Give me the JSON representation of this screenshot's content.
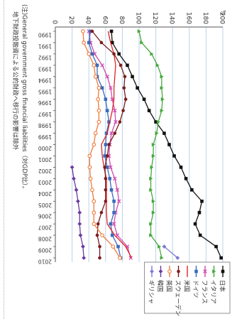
{
  "chart_data": {
    "type": "line",
    "title": "",
    "xlabel": "",
    "ylabel": "%",
    "ylim": [
      0,
      200
    ],
    "yticks": [
      0,
      20,
      40,
      60,
      80,
      100,
      120,
      140,
      160,
      180,
      200
    ],
    "grid": "horizontal",
    "legend_position": "top-right",
    "categories": [
      "1990",
      "1991",
      "1992",
      "1993",
      "1994",
      "1995",
      "1996",
      "1997",
      "1998",
      "1999",
      "2000",
      "2001",
      "2002",
      "2003",
      "2004",
      "2005",
      "2006",
      "2007",
      "2008",
      "2009",
      "2010"
    ],
    "x_tick_labels": [
      "1990",
      "1991",
      "1992",
      "1993",
      "1994",
      "1995",
      "1996",
      "1997",
      "1998",
      "1999",
      "2000",
      "2001",
      "2002",
      "2003",
      "2004",
      "2005",
      "2006",
      "2007",
      "2008",
      "2009",
      "2010"
    ],
    "series": [
      {
        "name": "日本",
        "color": "#111111",
        "marker": "square",
        "values": [
          67,
          68,
          76,
          86,
          92,
          98,
          106,
          112,
          120,
          130,
          136,
          142,
          150,
          156,
          163,
          175,
          172,
          167,
          173,
          192,
          198
        ]
      },
      {
        "name": "イタリア",
        "color": "#46a83c",
        "marker": "triangle",
        "values": [
          100,
          103,
          115,
          122,
          127,
          127,
          128,
          127,
          123,
          121,
          117,
          117,
          115,
          114,
          114,
          117,
          117,
          114,
          114,
          124,
          127
        ]
      },
      {
        "name": "フランス",
        "color": "#d04ab0",
        "marker": "x",
        "values": [
          40,
          42,
          47,
          56,
          62,
          66,
          68,
          71,
          72,
          67,
          65,
          64,
          66,
          71,
          74,
          76,
          72,
          70,
          74,
          86,
          90
        ]
      },
      {
        "name": "ドイツ",
        "color": "#3a6bbd",
        "marker": "square",
        "values": [
          42,
          40,
          44,
          50,
          50,
          56,
          60,
          62,
          64,
          61,
          60,
          59,
          62,
          65,
          67,
          70,
          70,
          66,
          68,
          75,
          78
        ]
      },
      {
        "name": "米国",
        "color": "#e02424",
        "marker": "none",
        "values": [
          63,
          66,
          70,
          72,
          71,
          70,
          70,
          68,
          65,
          62,
          55,
          56,
          58,
          61,
          61,
          61,
          61,
          62,
          71,
          84,
          91
        ]
      },
      {
        "name": "スウェーデン",
        "color": "#7b1c1c",
        "marker": "circle",
        "values": [
          44,
          55,
          70,
          78,
          83,
          82,
          84,
          81,
          77,
          71,
          64,
          62,
          59,
          60,
          60,
          60,
          55,
          51,
          50,
          53,
          53
        ]
      },
      {
        "name": "英国",
        "color": "#f07a3a",
        "marker": "circle-open",
        "values": [
          33,
          34,
          40,
          46,
          48,
          52,
          51,
          52,
          52,
          48,
          46,
          41,
          41,
          42,
          44,
          46,
          46,
          46,
          56,
          69,
          77
        ]
      },
      {
        "name": "韓国",
        "color": "#6a3aa0",
        "marker": "diamond",
        "values": [
          null,
          null,
          null,
          null,
          null,
          null,
          null,
          null,
          null,
          null,
          null,
          null,
          20,
          22,
          25,
          27,
          29,
          29,
          30,
          33,
          34
        ]
      },
      {
        "name": "ギリシャ",
        "color": "#7c7ad6",
        "marker": "diamond",
        "values": [
          null,
          null,
          null,
          null,
          null,
          null,
          null,
          null,
          null,
          null,
          null,
          null,
          null,
          null,
          null,
          null,
          null,
          null,
          null,
          130,
          146
        ]
      }
    ],
    "footnote": "(注)General government gross financial liabilities（対GDP比）。",
    "footnote2": "地下財政投融資による公的財政へ移行の影響は除外"
  }
}
